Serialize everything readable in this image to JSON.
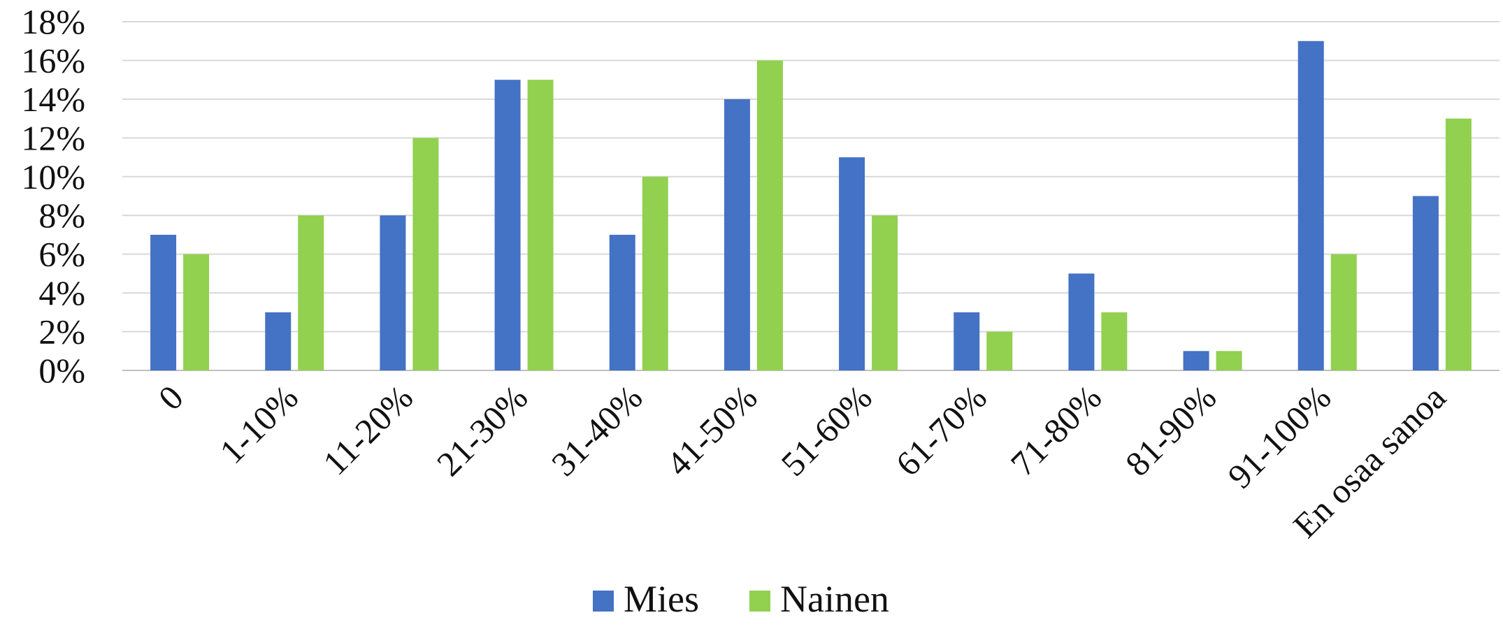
{
  "chart_data": {
    "type": "bar",
    "categories": [
      "0",
      "1-10%",
      "11-20%",
      "21-30%",
      "31-40%",
      "41-50%",
      "51-60%",
      "61-70%",
      "71-80%",
      "81-90%",
      "91-100%",
      "En osaa sanoa"
    ],
    "series": [
      {
        "name": "Mies",
        "color": "#4472C4",
        "values": [
          7,
          3,
          8,
          15,
          7,
          14,
          11,
          3,
          5,
          1,
          17,
          9
        ]
      },
      {
        "name": "Nainen",
        "color": "#92D050",
        "values": [
          6,
          8,
          12,
          15,
          10,
          16,
          8,
          2,
          3,
          1,
          6,
          13
        ]
      }
    ],
    "ylim": [
      0,
      18
    ],
    "yticks": [
      "0%",
      "2%",
      "4%",
      "6%",
      "8%",
      "10%",
      "12%",
      "14%",
      "16%",
      "18%"
    ],
    "grid": true,
    "legend_position": "bottom",
    "value_unit": "%"
  }
}
